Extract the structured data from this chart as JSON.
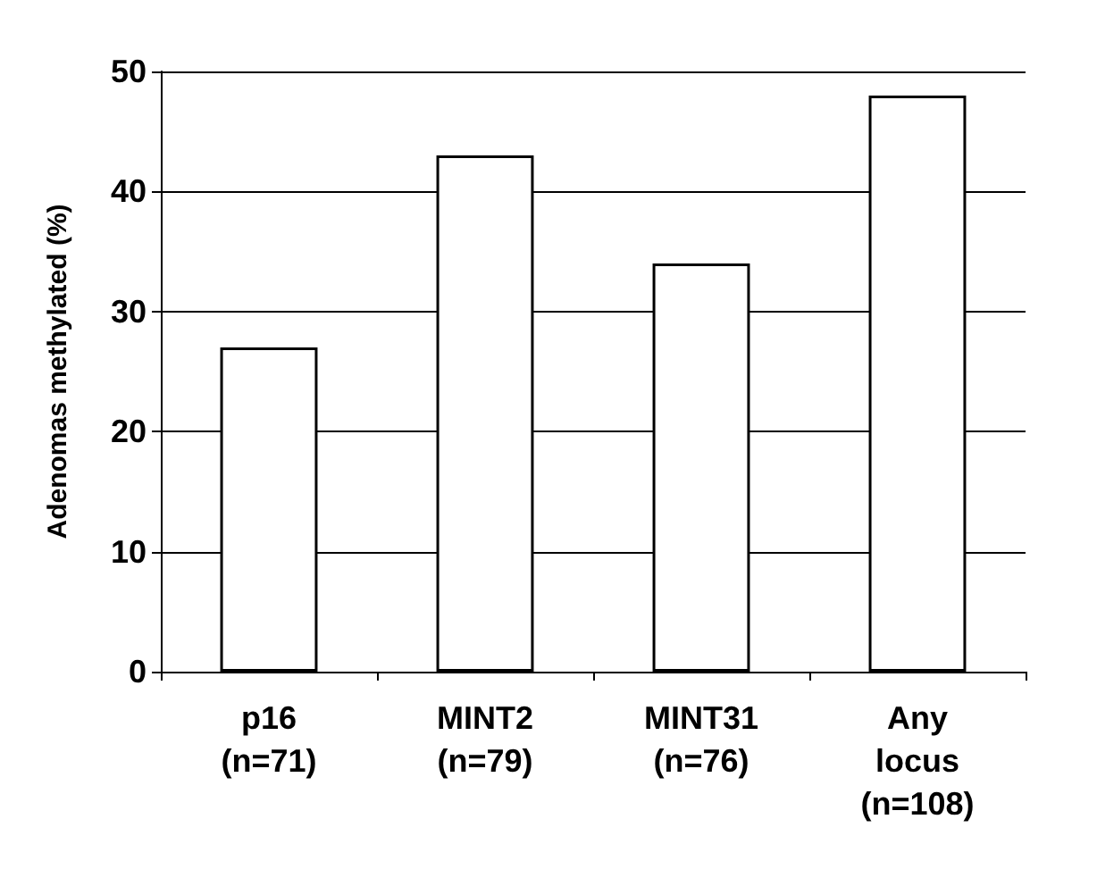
{
  "chart_data": {
    "type": "bar",
    "ylabel": "Adenomas methylated (%)",
    "categories": [
      "p16\n(n=71)",
      "MINT2\n(n=79)",
      "MINT31\n(n=76)",
      "Any\nlocus\n(n=108)"
    ],
    "values": [
      27,
      43,
      34,
      48
    ],
    "color": "#ffffff",
    "ylim": [
      0,
      50
    ],
    "yticks": [
      0,
      10,
      20,
      30,
      40,
      50
    ],
    "grid": "y"
  }
}
